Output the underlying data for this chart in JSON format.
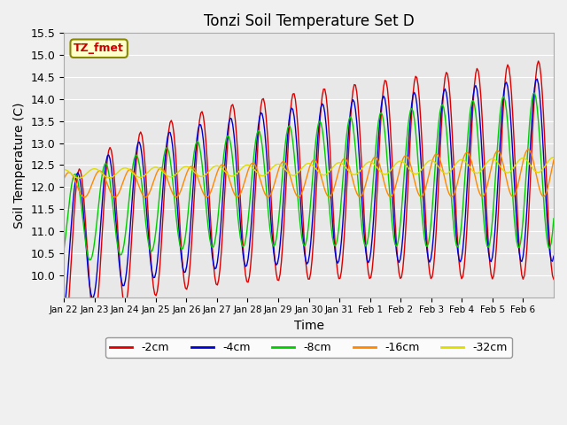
{
  "title": "Tonzi Soil Temperature Set D",
  "xlabel": "Time",
  "ylabel": "Soil Temperature (C)",
  "ylim": [
    9.5,
    15.5
  ],
  "yticks": [
    10.0,
    10.5,
    11.0,
    11.5,
    12.0,
    12.5,
    13.0,
    13.5,
    14.0,
    14.5,
    15.0,
    15.5
  ],
  "colors": {
    "-2cm": "#dd0000",
    "-4cm": "#0000cc",
    "-8cm": "#00cc00",
    "-16cm": "#ff8800",
    "-32cm": "#dddd00"
  },
  "legend_label": "TZ_fmet",
  "legend_bg": "#ffffcc",
  "legend_border": "#888800",
  "legend_text_color": "#cc0000",
  "x_tick_labels": [
    "Jan 22",
    "Jan 23",
    "Jan 24",
    "Jan 25",
    "Jan 26",
    "Jan 27",
    "Jan 28",
    "Jan 29",
    "Jan 30",
    "Jan 31",
    "Feb 1",
    "Feb 2",
    "Feb 3",
    "Feb 4",
    "Feb 5",
    "Feb 6"
  ],
  "n_days": 16,
  "fig_bg": "#f0f0f0",
  "plot_bg": "#e8e8e8"
}
